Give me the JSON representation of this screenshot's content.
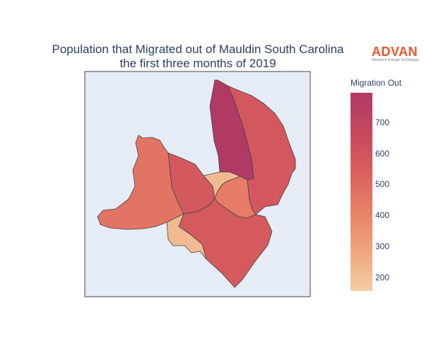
{
  "title": {
    "line1": "Population that Migrated out of Mauldin South Carolina",
    "line2": "the first three months of 2019"
  },
  "logo": {
    "text": "ADVAN",
    "tagline": "Research through Technology",
    "color": "#e8562a"
  },
  "colorbar": {
    "title": "Migration Out",
    "range": [
      157,
      795
    ],
    "ticks": [
      "700",
      "600",
      "500",
      "400",
      "300",
      "200"
    ],
    "colorscale": "Sunset",
    "colors": [
      "#f3cda4",
      "#efa67d",
      "#e88167",
      "#d95f5e",
      "#c5485e",
      "#b13a64"
    ]
  },
  "map": {
    "background": "#e5ecf6",
    "regions": [
      {
        "name": "north-central-region",
        "value": 795
      },
      {
        "name": "east-region",
        "value": 585
      },
      {
        "name": "west-region",
        "value": 460
      },
      {
        "name": "west-central-region",
        "value": 575
      },
      {
        "name": "center-small-region",
        "value": 215
      },
      {
        "name": "center-east-region",
        "value": 430
      },
      {
        "name": "south-region",
        "value": 570
      },
      {
        "name": "southwest-small-region",
        "value": 220
      }
    ]
  }
}
